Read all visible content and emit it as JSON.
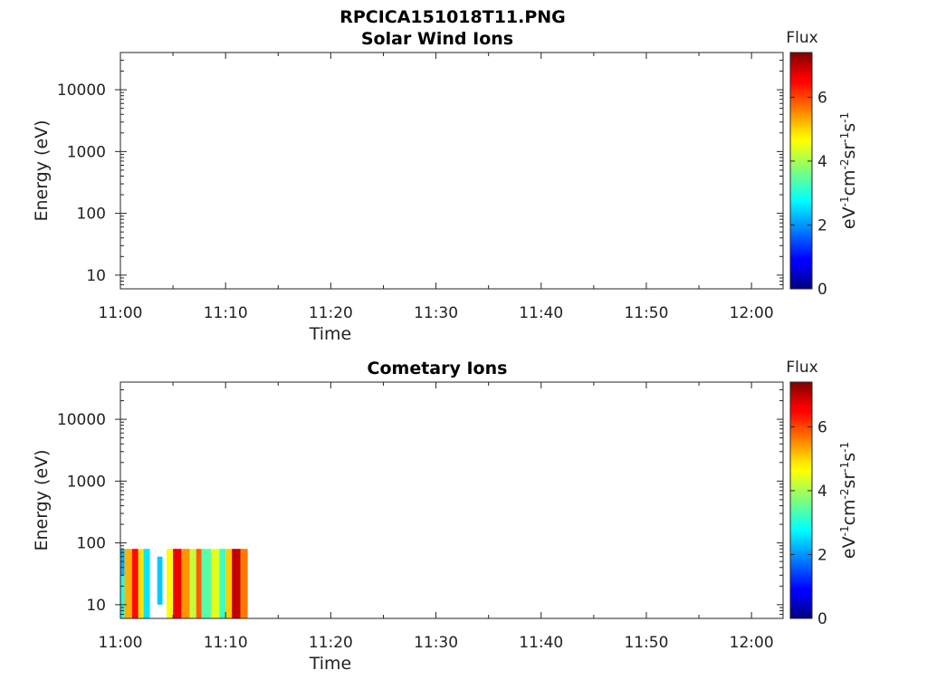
{
  "figure": {
    "title": "RPCICA151018T11.PNG"
  },
  "chart_data": [
    {
      "type": "heatmap",
      "title": "Solar Wind Ions",
      "xlabel": "Time",
      "ylabel": "Energy (eV)",
      "x_tick_labels": [
        "11:00",
        "11:10",
        "11:20",
        "11:30",
        "11:40",
        "11:50",
        "12:00"
      ],
      "x_tick_minutes": [
        0,
        10,
        20,
        30,
        40,
        50,
        60
      ],
      "xlim_minutes": [
        0,
        63
      ],
      "y_scale": "log",
      "y_tick_labels": [
        "10",
        "100",
        "1000",
        "10000"
      ],
      "y_tick_values": [
        10,
        100,
        1000,
        10000
      ],
      "ylim": [
        6,
        40000
      ],
      "colorbar": {
        "title": "Flux",
        "label": "eV-1cm-2sr-1s-1",
        "ticks": [
          "0",
          "2",
          "4",
          "6"
        ],
        "tick_values": [
          0,
          2,
          4,
          6
        ],
        "range": [
          0,
          7.4
        ],
        "colormap": "jet"
      },
      "blocks": []
    },
    {
      "type": "heatmap",
      "title": "Cometary Ions",
      "xlabel": "Time",
      "ylabel": "Energy (eV)",
      "x_tick_labels": [
        "11:00",
        "11:10",
        "11:20",
        "11:30",
        "11:40",
        "11:50",
        "12:00"
      ],
      "x_tick_minutes": [
        0,
        10,
        20,
        30,
        40,
        50,
        60
      ],
      "xlim_minutes": [
        0,
        63
      ],
      "y_scale": "log",
      "y_tick_labels": [
        "10",
        "100",
        "1000",
        "10000"
      ],
      "y_tick_values": [
        10,
        100,
        1000,
        10000
      ],
      "ylim": [
        6,
        40000
      ],
      "colorbar": {
        "title": "Flux",
        "label": "eV-1cm-2sr-1s-1",
        "ticks": [
          "0",
          "2",
          "4",
          "6"
        ],
        "tick_values": [
          0,
          2,
          4,
          6
        ],
        "range": [
          0,
          7.4
        ],
        "colormap": "jet"
      },
      "blocks": [
        {
          "t_start": 0.0,
          "t_end": 0.4,
          "e_low": 6,
          "e_high": 30,
          "flux": 3.0
        },
        {
          "t_start": 0.0,
          "t_end": 0.4,
          "e_low": 30,
          "e_high": 80,
          "flux": 2.2
        },
        {
          "t_start": 0.4,
          "t_end": 1.1,
          "e_low": 6,
          "e_high": 80,
          "flux": 5.2
        },
        {
          "t_start": 1.1,
          "t_end": 1.7,
          "e_low": 6,
          "e_high": 80,
          "flux": 6.4
        },
        {
          "t_start": 1.7,
          "t_end": 2.2,
          "e_low": 6,
          "e_high": 80,
          "flux": 4.8
        },
        {
          "t_start": 2.2,
          "t_end": 2.8,
          "e_low": 6,
          "e_high": 80,
          "flux": 2.6
        },
        {
          "t_start": 3.5,
          "t_end": 4.0,
          "e_low": 10,
          "e_high": 60,
          "flux": 2.4
        },
        {
          "t_start": 4.4,
          "t_end": 5.0,
          "e_low": 6,
          "e_high": 80,
          "flux": 4.6
        },
        {
          "t_start": 5.0,
          "t_end": 5.8,
          "e_low": 6,
          "e_high": 80,
          "flux": 6.6
        },
        {
          "t_start": 5.8,
          "t_end": 6.6,
          "e_low": 6,
          "e_high": 80,
          "flux": 5.4
        },
        {
          "t_start": 6.6,
          "t_end": 7.2,
          "e_low": 6,
          "e_high": 80,
          "flux": 4.2
        },
        {
          "t_start": 7.2,
          "t_end": 7.7,
          "e_low": 6,
          "e_high": 80,
          "flux": 5.8
        },
        {
          "t_start": 7.7,
          "t_end": 8.6,
          "e_low": 6,
          "e_high": 80,
          "flux": 3.4
        },
        {
          "t_start": 8.6,
          "t_end": 9.4,
          "e_low": 6,
          "e_high": 80,
          "flux": 4.4
        },
        {
          "t_start": 9.4,
          "t_end": 10.0,
          "e_low": 6,
          "e_high": 80,
          "flux": 3.2
        },
        {
          "t_start": 10.0,
          "t_end": 10.6,
          "e_low": 6,
          "e_high": 80,
          "flux": 5.0
        },
        {
          "t_start": 10.6,
          "t_end": 11.4,
          "e_low": 6,
          "e_high": 80,
          "flux": 6.9
        },
        {
          "t_start": 11.4,
          "t_end": 12.1,
          "e_low": 6,
          "e_high": 80,
          "flux": 5.6
        }
      ]
    }
  ]
}
